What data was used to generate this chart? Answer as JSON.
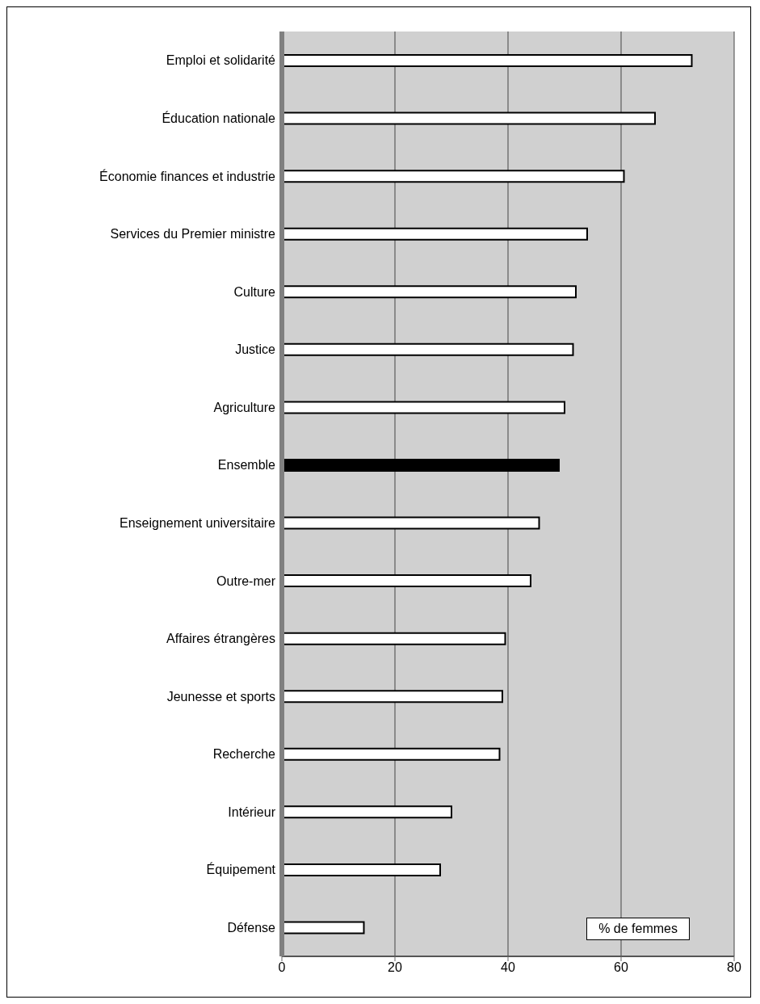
{
  "chart_data": {
    "type": "bar",
    "orientation": "horizontal",
    "categories": [
      "Emploi et solidarité",
      "Éducation nationale",
      "Économie finances et industrie",
      "Services du Premier ministre",
      "Culture",
      "Justice",
      "Agriculture",
      "Ensemble",
      "Enseignement universitaire",
      "Outre-mer",
      "Affaires étrangères",
      "Jeunesse et sports",
      "Recherche",
      "Intérieur",
      "Équipement",
      "Défense"
    ],
    "values": [
      72.5,
      66,
      60.5,
      54,
      52,
      51.5,
      50,
      49,
      45.5,
      44,
      39.5,
      39,
      38.5,
      30,
      28,
      14.5
    ],
    "colors": [
      "#ffffff",
      "#ffffff",
      "#ffffff",
      "#ffffff",
      "#ffffff",
      "#ffffff",
      "#ffffff",
      "#000000",
      "#ffffff",
      "#ffffff",
      "#ffffff",
      "#ffffff",
      "#ffffff",
      "#ffffff",
      "#ffffff",
      "#ffffff"
    ],
    "xlim": [
      0,
      80
    ],
    "xticks": [
      0,
      20,
      40,
      60,
      80
    ],
    "grid": "x",
    "annotations": [
      "% de femmes"
    ]
  }
}
